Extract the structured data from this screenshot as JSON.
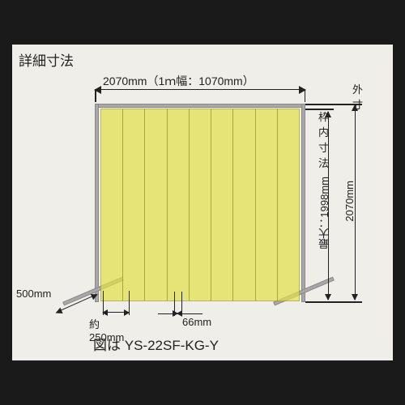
{
  "title": "詳細寸法",
  "caption_prefix": "図は ",
  "caption_model": "YS-22SF-KG-Y",
  "dims": {
    "top_width": "2070mm（1ｍ幅：1070mm）",
    "foot_depth": "500mm",
    "strip_pitch_prefix": "約",
    "strip_pitch": "250mm",
    "strip_overlap": "66mm",
    "outer_label": "外寸",
    "inner_label": "枠内寸法",
    "inner_height": "最大：1998mm",
    "outer_height": "2070mm"
  },
  "style": {
    "curtain_color": "#e3df4d",
    "curtain_opacity": 0.72,
    "strip_count": 9,
    "background": "#f0eee8"
  }
}
